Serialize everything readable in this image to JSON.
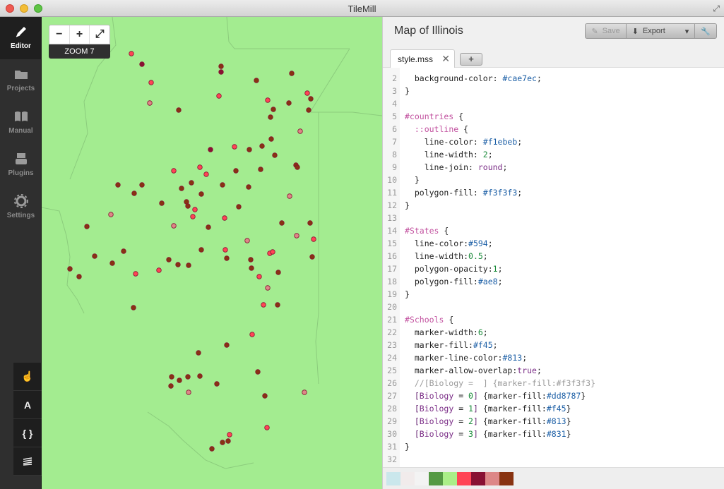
{
  "window": {
    "title": "TileMill"
  },
  "sidebar": {
    "items": [
      {
        "label": "Editor",
        "icon": "pencil-icon",
        "active": true
      },
      {
        "label": "Projects",
        "icon": "folder-icon",
        "active": false
      },
      {
        "label": "Manual",
        "icon": "book-icon",
        "active": false
      },
      {
        "label": "Plugins",
        "icon": "plugin-icon",
        "active": false
      },
      {
        "label": "Settings",
        "icon": "gear-icon",
        "active": false
      }
    ],
    "tools": [
      {
        "label": "",
        "icon": "hand-pointer-icon"
      },
      {
        "label": "A",
        "icon": "font-icon"
      },
      {
        "label": "{ }",
        "icon": "braces-icon"
      },
      {
        "label": "",
        "icon": "layers-icon"
      }
    ]
  },
  "map": {
    "zoom_label": "ZOOM 7",
    "zoom_out": "−",
    "zoom_in": "+",
    "fullscreen_icon": "expand-icon",
    "background_color": "#a3ec90",
    "marker_colors": [
      "#dd8787",
      "#f45",
      "#813",
      "#831"
    ]
  },
  "editor": {
    "project_title": "Map of Illinois",
    "save_label": "Save",
    "export_label": "Export",
    "tab_name": "style.mss",
    "add_tab": "+",
    "code_lines": [
      [
        "2",
        "  background-color: #cae7ec;"
      ],
      [
        "3",
        "}"
      ],
      [
        "4",
        ""
      ],
      [
        "5",
        "#countries {"
      ],
      [
        "6",
        "  ::outline {"
      ],
      [
        "7",
        "    line-color: #f1ebeb;"
      ],
      [
        "8",
        "    line-width: 2;"
      ],
      [
        "9",
        "    line-join: round;"
      ],
      [
        "10",
        "  }"
      ],
      [
        "11",
        "  polygon-fill: #f3f3f3;"
      ],
      [
        "12",
        "}"
      ],
      [
        "13",
        ""
      ],
      [
        "14",
        "#States {"
      ],
      [
        "15",
        "  line-color:#594;"
      ],
      [
        "16",
        "  line-width:0.5;"
      ],
      [
        "17",
        "  polygon-opacity:1;"
      ],
      [
        "18",
        "  polygon-fill:#ae8;"
      ],
      [
        "19",
        "}"
      ],
      [
        "20",
        ""
      ],
      [
        "21",
        "#Schools {"
      ],
      [
        "22",
        "  marker-width:6;"
      ],
      [
        "23",
        "  marker-fill:#f45;"
      ],
      [
        "24",
        "  marker-line-color:#813;"
      ],
      [
        "25",
        "  marker-allow-overlap:true;"
      ],
      [
        "26",
        "  //[Biology =  ] {marker-fill:#f3f3f3}"
      ],
      [
        "27",
        "  [Biology = 0] {marker-fill:#dd8787}"
      ],
      [
        "28",
        "  [Biology = 1] {marker-fill:#f45}"
      ],
      [
        "29",
        "  [Biology = 2] {marker-fill:#813}"
      ],
      [
        "30",
        "  [Biology = 3] {marker-fill:#831}"
      ],
      [
        "31",
        "}"
      ],
      [
        "32",
        ""
      ]
    ],
    "palette": [
      "#cae7ec",
      "#f1ebeb",
      "#f3f3f3",
      "#559944",
      "#aaee88",
      "#ff4455",
      "#881133",
      "#dd8787",
      "#883311"
    ]
  }
}
